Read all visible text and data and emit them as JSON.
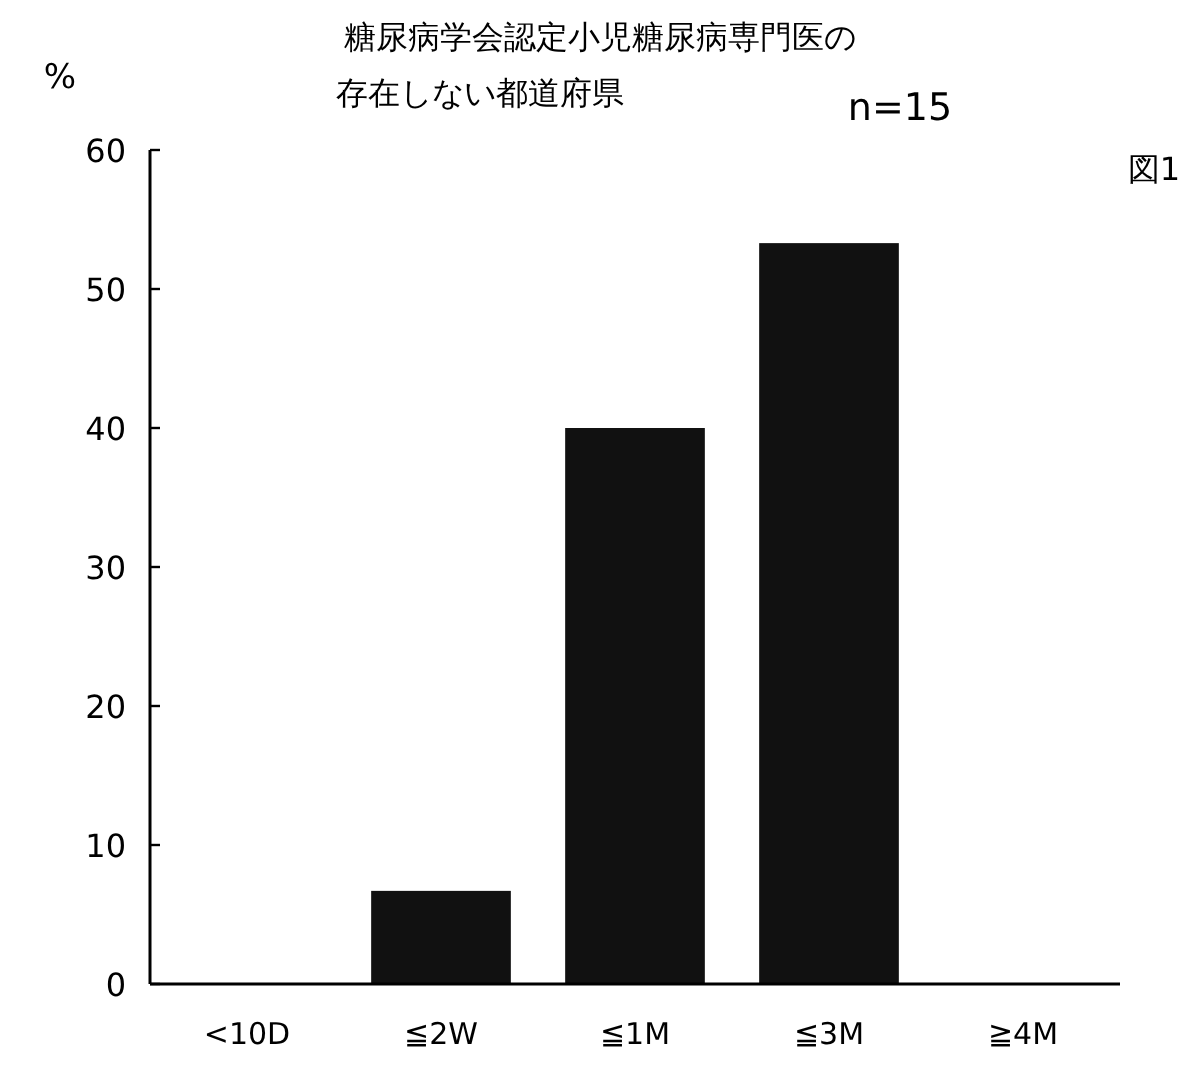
{
  "chart_data": {
    "type": "bar",
    "title": "糖尿病学会認定小児糖尿病専門医の",
    "subtitle": "存在しない都道府県",
    "ylabel": "%",
    "categories": [
      "<10D",
      "≦2W",
      "≦1M",
      "≦3M",
      "≧4M"
    ],
    "values": [
      0,
      6.7,
      40,
      53.3,
      0
    ],
    "color": "#111111",
    "ylim": [
      0,
      60
    ],
    "yticks": [
      0,
      10,
      20,
      30,
      40,
      50,
      60
    ],
    "annotations": [
      "n=15",
      "図1"
    ]
  }
}
